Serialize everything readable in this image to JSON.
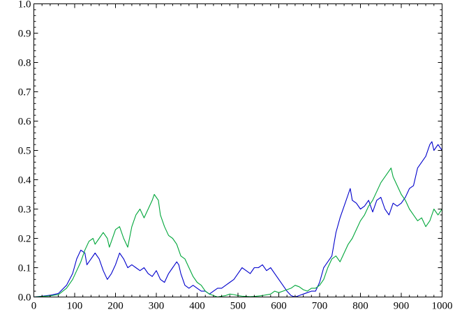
{
  "chart_data": {
    "type": "line",
    "title": "",
    "xlabel": "",
    "ylabel": "",
    "xlim": [
      0,
      1000
    ],
    "ylim": [
      0,
      1.0
    ],
    "grid": false,
    "legend": "none",
    "x_ticks": [
      0,
      100,
      200,
      300,
      400,
      500,
      600,
      700,
      800,
      900,
      1000
    ],
    "x_tick_labels": [
      "0",
      "100",
      "200",
      "300",
      "400",
      "500",
      "600",
      "700",
      "800",
      "900",
      "1000"
    ],
    "y_ticks": [
      0,
      0.1,
      0.2,
      0.3,
      0.4,
      0.5,
      0.6,
      0.7,
      0.8,
      0.9,
      1.0
    ],
    "y_tick_labels": [
      "0.0",
      "0.1",
      "0.2",
      "0.3",
      "0.4",
      "0.5",
      "0.6",
      "0.7",
      "0.8",
      "0.9",
      "1.0"
    ],
    "series": [
      {
        "color": "#0000cc",
        "points": [
          [
            0,
            0.0
          ],
          [
            20,
            0.003
          ],
          [
            40,
            0.006
          ],
          [
            60,
            0.012
          ],
          [
            80,
            0.04
          ],
          [
            95,
            0.08
          ],
          [
            105,
            0.13
          ],
          [
            115,
            0.16
          ],
          [
            125,
            0.15
          ],
          [
            130,
            0.11
          ],
          [
            140,
            0.13
          ],
          [
            150,
            0.15
          ],
          [
            160,
            0.13
          ],
          [
            170,
            0.09
          ],
          [
            180,
            0.06
          ],
          [
            190,
            0.08
          ],
          [
            200,
            0.11
          ],
          [
            210,
            0.15
          ],
          [
            220,
            0.13
          ],
          [
            230,
            0.1
          ],
          [
            240,
            0.11
          ],
          [
            250,
            0.1
          ],
          [
            260,
            0.09
          ],
          [
            270,
            0.1
          ],
          [
            280,
            0.08
          ],
          [
            290,
            0.07
          ],
          [
            300,
            0.09
          ],
          [
            310,
            0.06
          ],
          [
            320,
            0.05
          ],
          [
            330,
            0.08
          ],
          [
            340,
            0.1
          ],
          [
            350,
            0.12
          ],
          [
            355,
            0.11
          ],
          [
            360,
            0.08
          ],
          [
            370,
            0.04
          ],
          [
            380,
            0.03
          ],
          [
            390,
            0.04
          ],
          [
            400,
            0.03
          ],
          [
            410,
            0.02
          ],
          [
            420,
            0.02
          ],
          [
            430,
            0.01
          ],
          [
            440,
            0.02
          ],
          [
            450,
            0.03
          ],
          [
            460,
            0.03
          ],
          [
            470,
            0.04
          ],
          [
            480,
            0.05
          ],
          [
            490,
            0.06
          ],
          [
            500,
            0.08
          ],
          [
            510,
            0.1
          ],
          [
            520,
            0.09
          ],
          [
            530,
            0.08
          ],
          [
            540,
            0.1
          ],
          [
            550,
            0.1
          ],
          [
            560,
            0.11
          ],
          [
            570,
            0.09
          ],
          [
            580,
            0.1
          ],
          [
            590,
            0.08
          ],
          [
            600,
            0.06
          ],
          [
            610,
            0.04
          ],
          [
            620,
            0.02
          ],
          [
            630,
            0.005
          ],
          [
            640,
            0.0
          ],
          [
            650,
            0.005
          ],
          [
            660,
            0.01
          ],
          [
            670,
            0.015
          ],
          [
            680,
            0.02
          ],
          [
            690,
            0.02
          ],
          [
            700,
            0.05
          ],
          [
            710,
            0.1
          ],
          [
            720,
            0.12
          ],
          [
            730,
            0.14
          ],
          [
            740,
            0.22
          ],
          [
            750,
            0.27
          ],
          [
            760,
            0.31
          ],
          [
            770,
            0.35
          ],
          [
            775,
            0.37
          ],
          [
            780,
            0.33
          ],
          [
            790,
            0.32
          ],
          [
            800,
            0.3
          ],
          [
            810,
            0.31
          ],
          [
            820,
            0.33
          ],
          [
            830,
            0.29
          ],
          [
            840,
            0.33
          ],
          [
            850,
            0.34
          ],
          [
            860,
            0.3
          ],
          [
            870,
            0.28
          ],
          [
            880,
            0.32
          ],
          [
            890,
            0.31
          ],
          [
            900,
            0.32
          ],
          [
            910,
            0.34
          ],
          [
            920,
            0.37
          ],
          [
            930,
            0.38
          ],
          [
            940,
            0.44
          ],
          [
            950,
            0.46
          ],
          [
            960,
            0.48
          ],
          [
            970,
            0.52
          ],
          [
            975,
            0.53
          ],
          [
            980,
            0.5
          ],
          [
            990,
            0.52
          ],
          [
            1000,
            0.5
          ]
        ]
      },
      {
        "color": "#00a63a",
        "points": [
          [
            0,
            0.0
          ],
          [
            20,
            0.002
          ],
          [
            40,
            0.004
          ],
          [
            60,
            0.008
          ],
          [
            80,
            0.03
          ],
          [
            95,
            0.06
          ],
          [
            105,
            0.09
          ],
          [
            115,
            0.12
          ],
          [
            125,
            0.16
          ],
          [
            135,
            0.19
          ],
          [
            145,
            0.2
          ],
          [
            150,
            0.18
          ],
          [
            160,
            0.2
          ],
          [
            170,
            0.22
          ],
          [
            180,
            0.2
          ],
          [
            185,
            0.17
          ],
          [
            190,
            0.19
          ],
          [
            200,
            0.23
          ],
          [
            210,
            0.24
          ],
          [
            220,
            0.2
          ],
          [
            230,
            0.17
          ],
          [
            240,
            0.24
          ],
          [
            250,
            0.28
          ],
          [
            260,
            0.3
          ],
          [
            270,
            0.27
          ],
          [
            280,
            0.3
          ],
          [
            290,
            0.33
          ],
          [
            295,
            0.35
          ],
          [
            305,
            0.33
          ],
          [
            310,
            0.28
          ],
          [
            320,
            0.24
          ],
          [
            330,
            0.21
          ],
          [
            340,
            0.2
          ],
          [
            350,
            0.18
          ],
          [
            360,
            0.14
          ],
          [
            370,
            0.13
          ],
          [
            380,
            0.1
          ],
          [
            390,
            0.07
          ],
          [
            400,
            0.05
          ],
          [
            410,
            0.04
          ],
          [
            420,
            0.02
          ],
          [
            430,
            0.01
          ],
          [
            440,
            0.005
          ],
          [
            450,
            0.0
          ],
          [
            460,
            0.003
          ],
          [
            470,
            0.005
          ],
          [
            480,
            0.01
          ],
          [
            490,
            0.008
          ],
          [
            500,
            0.005
          ],
          [
            510,
            0.003
          ],
          [
            520,
            0.002
          ],
          [
            530,
            0.001
          ],
          [
            540,
            0.002
          ],
          [
            560,
            0.005
          ],
          [
            580,
            0.01
          ],
          [
            590,
            0.02
          ],
          [
            600,
            0.015
          ],
          [
            610,
            0.02
          ],
          [
            620,
            0.025
          ],
          [
            630,
            0.03
          ],
          [
            640,
            0.04
          ],
          [
            650,
            0.035
          ],
          [
            660,
            0.025
          ],
          [
            670,
            0.02
          ],
          [
            680,
            0.03
          ],
          [
            690,
            0.03
          ],
          [
            700,
            0.04
          ],
          [
            710,
            0.06
          ],
          [
            720,
            0.1
          ],
          [
            730,
            0.13
          ],
          [
            740,
            0.14
          ],
          [
            750,
            0.12
          ],
          [
            760,
            0.15
          ],
          [
            770,
            0.18
          ],
          [
            780,
            0.2
          ],
          [
            790,
            0.23
          ],
          [
            800,
            0.26
          ],
          [
            810,
            0.28
          ],
          [
            820,
            0.31
          ],
          [
            830,
            0.33
          ],
          [
            840,
            0.36
          ],
          [
            850,
            0.39
          ],
          [
            860,
            0.41
          ],
          [
            870,
            0.43
          ],
          [
            875,
            0.44
          ],
          [
            880,
            0.41
          ],
          [
            890,
            0.38
          ],
          [
            900,
            0.35
          ],
          [
            910,
            0.33
          ],
          [
            920,
            0.3
          ],
          [
            930,
            0.28
          ],
          [
            940,
            0.26
          ],
          [
            950,
            0.27
          ],
          [
            960,
            0.24
          ],
          [
            970,
            0.26
          ],
          [
            980,
            0.3
          ],
          [
            990,
            0.28
          ],
          [
            1000,
            0.3
          ]
        ]
      }
    ]
  }
}
